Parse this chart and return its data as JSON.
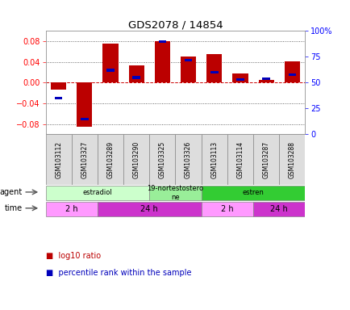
{
  "title": "GDS2078 / 14854",
  "samples": [
    "GSM103112",
    "GSM103327",
    "GSM103289",
    "GSM103290",
    "GSM103325",
    "GSM103326",
    "GSM103113",
    "GSM103114",
    "GSM103287",
    "GSM103288"
  ],
  "log10_ratio": [
    -0.013,
    -0.085,
    0.075,
    0.033,
    0.08,
    0.05,
    0.055,
    0.018,
    0.005,
    0.042
  ],
  "percentile_rank": [
    35,
    15,
    62,
    55,
    90,
    72,
    60,
    53,
    54,
    58
  ],
  "ylim_left": [
    -0.1,
    0.1
  ],
  "yticks_left": [
    -0.08,
    -0.04,
    0.0,
    0.04,
    0.08
  ],
  "yticks_right": [
    0,
    25,
    50,
    75,
    100
  ],
  "bar_color_red": "#bb0000",
  "bar_color_blue": "#0000bb",
  "agent_groups": [
    {
      "label": "estradiol",
      "start": 0,
      "end": 4,
      "color": "#ccffcc"
    },
    {
      "label": "19-nortestostero\nne",
      "start": 4,
      "end": 6,
      "color": "#99ee99"
    },
    {
      "label": "estren",
      "start": 6,
      "end": 10,
      "color": "#33cc33"
    }
  ],
  "time_groups": [
    {
      "label": "2 h",
      "start": 0,
      "end": 2,
      "color": "#ff99ff"
    },
    {
      "label": "24 h",
      "start": 2,
      "end": 6,
      "color": "#cc33cc"
    },
    {
      "label": "2 h",
      "start": 6,
      "end": 8,
      "color": "#ff99ff"
    },
    {
      "label": "24 h",
      "start": 8,
      "end": 10,
      "color": "#cc33cc"
    }
  ],
  "legend_red_label": "log10 ratio",
  "legend_blue_label": "percentile rank within the sample",
  "zero_line_color": "#cc0000",
  "bg_color": "#ffffff"
}
